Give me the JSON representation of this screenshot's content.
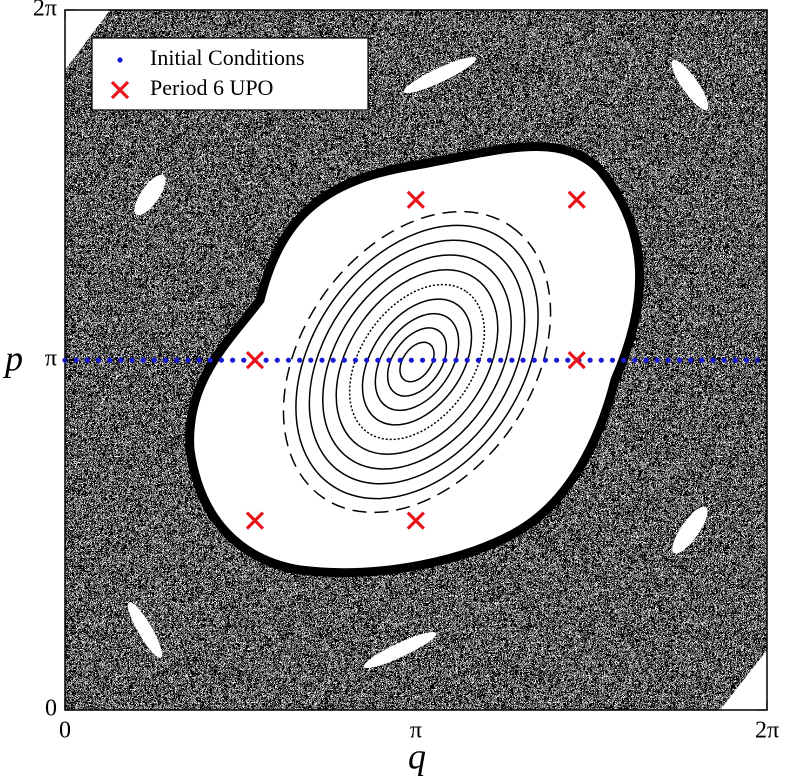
{
  "chart_data": {
    "type": "scatter",
    "x_label": "q",
    "y_label": "p",
    "xlim": [
      0,
      6.28319
    ],
    "ylim": [
      0,
      6.28319
    ],
    "xticks": [
      0,
      {
        "value": 3.14159,
        "label": "π"
      },
      {
        "value": 6.28319,
        "label": "2π"
      }
    ],
    "yticks": [
      0,
      {
        "value": 3.14159,
        "label": "π"
      },
      {
        "value": 6.28319,
        "label": "2π"
      }
    ],
    "legend": "upper left",
    "series": [
      {
        "name": "Initial Conditions",
        "color": "#1a1ad6",
        "marker": "dot",
        "x": [
          0.0,
          0.1,
          0.2,
          0.3,
          0.4,
          0.5,
          0.6,
          0.7,
          0.8,
          0.9,
          1.0,
          1.1,
          1.2,
          1.3,
          1.4,
          1.5,
          1.6,
          1.7,
          1.8,
          1.9,
          2.0,
          2.1,
          2.2,
          2.3,
          2.4,
          2.5,
          2.6,
          2.7,
          2.8,
          2.9,
          3.0,
          3.1,
          3.2,
          3.3,
          3.4,
          3.5,
          3.6,
          3.7,
          3.8,
          3.9,
          4.0,
          4.1,
          4.2,
          4.3,
          4.4,
          4.5,
          4.6,
          4.7,
          4.8,
          4.9,
          5.0,
          5.1,
          5.2,
          5.3,
          5.4,
          5.5,
          5.6,
          5.7,
          5.8,
          5.9,
          6.0,
          6.1,
          6.2
        ],
        "values": [
          3.14,
          3.14,
          3.14,
          3.14,
          3.14,
          3.14,
          3.14,
          3.14,
          3.14,
          3.14,
          3.14,
          3.14,
          3.14,
          3.14,
          3.14,
          3.14,
          3.14,
          3.14,
          3.14,
          3.14,
          3.14,
          3.14,
          3.14,
          3.14,
          3.14,
          3.14,
          3.14,
          3.14,
          3.14,
          3.14,
          3.14,
          3.14,
          3.14,
          3.14,
          3.14,
          3.14,
          3.14,
          3.14,
          3.14,
          3.14,
          3.14,
          3.14,
          3.14,
          3.14,
          3.14,
          3.14,
          3.14,
          3.14,
          3.14,
          3.14,
          3.14,
          3.14,
          3.14,
          3.14,
          3.14,
          3.14,
          3.14,
          3.14,
          3.14,
          3.14,
          3.14,
          3.14,
          3.14
        ]
      },
      {
        "name": "Period 6 UPO",
        "color": "#e8141c",
        "marker": "x",
        "x": [
          3.14,
          4.58,
          1.7,
          4.58,
          1.7,
          3.14
        ],
        "values": [
          4.58,
          4.58,
          3.14,
          3.14,
          1.7,
          1.7
        ]
      }
    ]
  }
}
